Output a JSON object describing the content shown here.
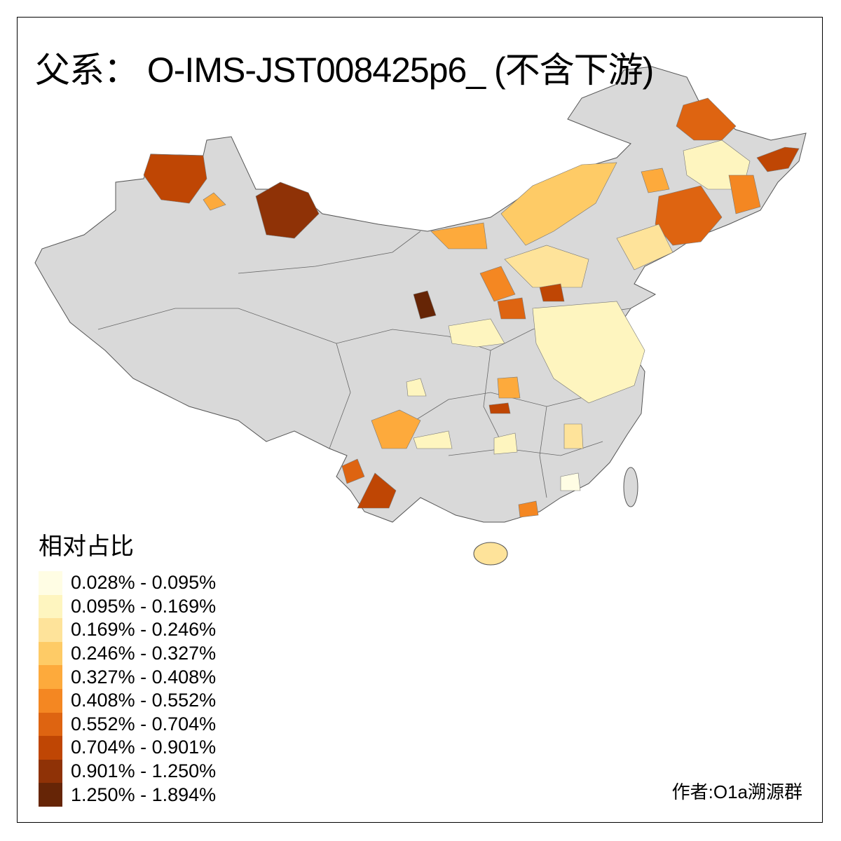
{
  "title": "父系： O-IMS-JST008425p6_ (不含下游)",
  "legend": {
    "title": "相对占比",
    "items": [
      {
        "label": "0.028% - 0.095%",
        "color": "#FFFDE4"
      },
      {
        "label": "0.095% - 0.169%",
        "color": "#FEF5BF"
      },
      {
        "label": "0.169% - 0.246%",
        "color": "#FEE39A"
      },
      {
        "label": "0.246% - 0.327%",
        "color": "#FECB66"
      },
      {
        "label": "0.327% - 0.408%",
        "color": "#FDAA3C"
      },
      {
        "label": "0.408% - 0.552%",
        "color": "#F48722"
      },
      {
        "label": "0.552% - 0.704%",
        "color": "#DE6411"
      },
      {
        "label": "0.704% - 0.901%",
        "color": "#BF4604"
      },
      {
        "label": "0.901% - 1.250%",
        "color": "#8F3206"
      },
      {
        "label": "1.250% - 1.894%",
        "color": "#662506"
      }
    ]
  },
  "no_data_color": "#D9D9D9",
  "author": "作者:O1a溯源群"
}
